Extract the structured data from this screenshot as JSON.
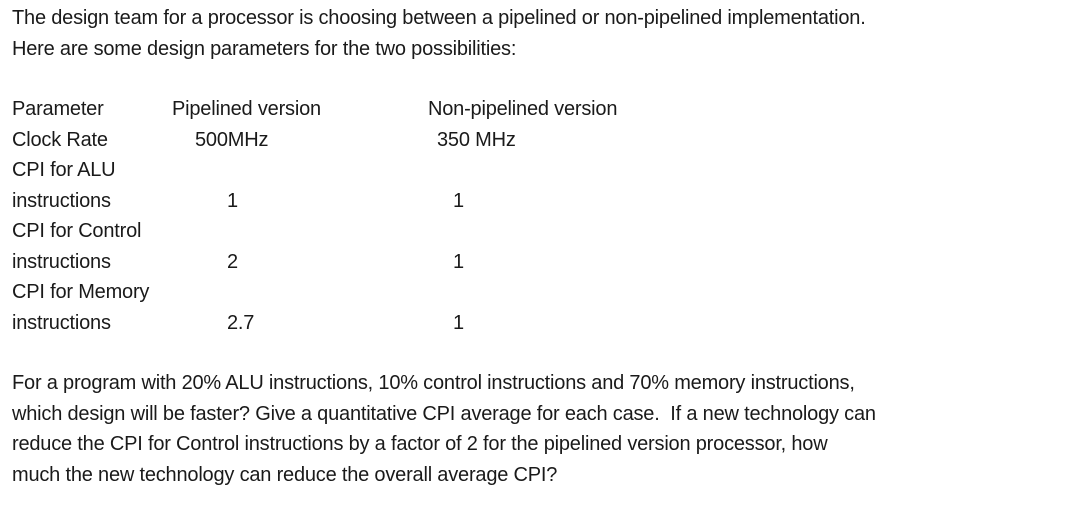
{
  "intro": {
    "line1": "The design team for a processor is choosing between a pipelined or non-pipelined implementation.",
    "line2": "Here are some design parameters for the two possibilities:"
  },
  "table": {
    "columns": {
      "parameter": "Parameter",
      "pipelined": "Pipelined version",
      "non_pipelined": "Non-pipelined version"
    },
    "rows": [
      {
        "param": "Clock Rate",
        "pipelined": "500MHz",
        "non_pipelined": "350 MHz"
      },
      {
        "param": "CPI for ALU instructions",
        "pipelined": "1",
        "non_pipelined": "1"
      },
      {
        "param": "CPI for Control instructions",
        "pipelined": "2",
        "non_pipelined": "1"
      },
      {
        "param": "CPI for Memory instructions",
        "pipelined": "2.7",
        "non_pipelined": "1"
      }
    ]
  },
  "question": {
    "line1": "For a program with 20% ALU instructions, 10% control instructions and 70% memory instructions,",
    "line2": "which design will be faster? Give a quantitative CPI average for each case.  If a new technology can",
    "line3": "reduce the CPI for Control instructions by a factor of 2 for the pipelined version processor, how",
    "line4": "much the new technology can reduce the overall average CPI?"
  },
  "colors": {
    "text": "#1a1a1a",
    "background": "#ffffff"
  }
}
